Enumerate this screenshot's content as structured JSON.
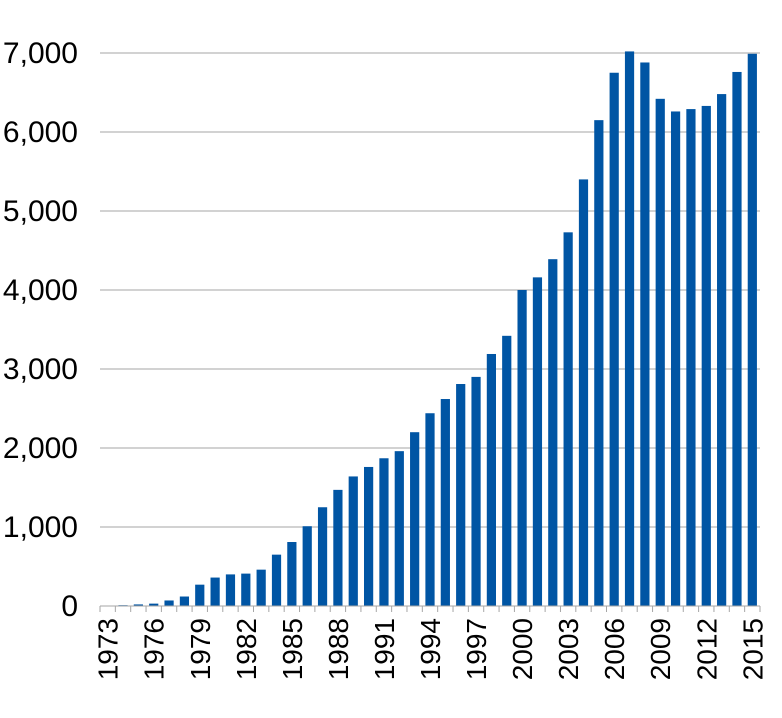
{
  "chart_data": {
    "type": "bar",
    "title": "",
    "xlabel": "",
    "ylabel": "",
    "ylim": [
      0,
      7000
    ],
    "yticks": [
      0,
      1000,
      2000,
      3000,
      4000,
      5000,
      6000,
      7000
    ],
    "ytick_labels": [
      "0",
      "1,000",
      "2,000",
      "3,000",
      "4,000",
      "5,000",
      "6,000",
      "7,000"
    ],
    "grid": true,
    "bar_color": "#0055A4",
    "grid_color": "#A6A6A6",
    "categories": [
      "1973",
      "1974",
      "1975",
      "1976",
      "1977",
      "1978",
      "1979",
      "1980",
      "1981",
      "1982",
      "1983",
      "1984",
      "1985",
      "1986",
      "1987",
      "1988",
      "1989",
      "1990",
      "1991",
      "1992",
      "1993",
      "1994",
      "1995",
      "1996",
      "1997",
      "1998",
      "1999",
      "2000",
      "2001",
      "2002",
      "2003",
      "2004",
      "2005",
      "2006",
      "2007",
      "2008",
      "2009",
      "2010",
      "2011",
      "2012",
      "2013",
      "2014",
      "2015"
    ],
    "xtick_labels": [
      "1973",
      "1976",
      "1979",
      "1982",
      "1985",
      "1988",
      "1991",
      "1994",
      "1997",
      "2000",
      "2003",
      "2006",
      "2009",
      "2012",
      "2015"
    ],
    "values": [
      5,
      10,
      20,
      30,
      70,
      120,
      270,
      360,
      400,
      410,
      460,
      650,
      810,
      1010,
      1250,
      1470,
      1640,
      1760,
      1870,
      1960,
      2200,
      2440,
      2620,
      2810,
      2900,
      3190,
      3420,
      4000,
      4160,
      4390,
      4730,
      5400,
      6150,
      6750,
      7020,
      6880,
      6420,
      6260,
      6290,
      6330,
      6480,
      6760,
      6990
    ]
  }
}
